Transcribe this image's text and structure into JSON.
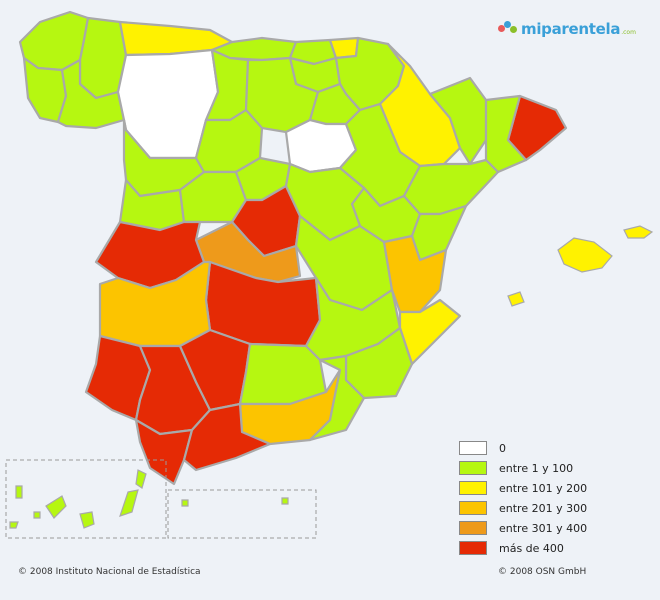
{
  "logo": {
    "text": "miparentela",
    "suffix": ".com"
  },
  "colors": {
    "none": "#ffffff",
    "c1_100": "#b6f711",
    "c101_200": "#fff200",
    "c201_300": "#fcc400",
    "c301_400": "#ee9a1b",
    "c400plus": "#e52a05"
  },
  "legend": [
    {
      "label": "0",
      "color": "#ffffff"
    },
    {
      "label": "entre 1 y 100",
      "color": "#b6f711"
    },
    {
      "label": "entre 101 y 200",
      "color": "#fff200"
    },
    {
      "label": "entre 201 y 300",
      "color": "#fcc400"
    },
    {
      "label": "entre 301 y 400",
      "color": "#ee9a1b"
    },
    {
      "label": "más de 400",
      "color": "#e52a05"
    }
  ],
  "footer": {
    "left": "© 2008 Instituto Nacional de Estadística",
    "right": "© 2008 OSN GmbH"
  }
}
